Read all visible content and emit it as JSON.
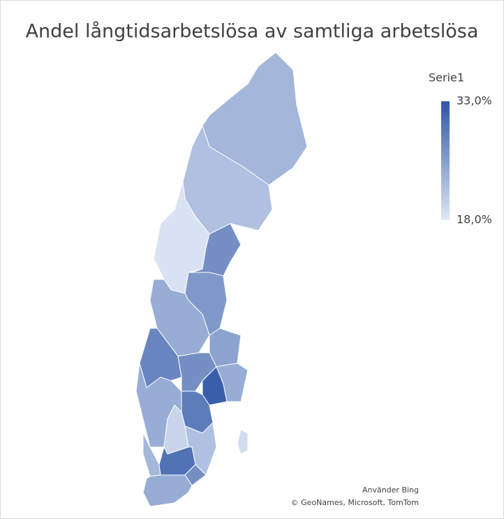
{
  "chart_data": {
    "type": "choropleth",
    "title": "Andel långtidsarbetslösa av samtliga arbetslösa",
    "legend_title": "Serie1",
    "values": [
      23,
      22,
      18.5,
      27,
      26,
      24,
      28,
      27,
      25,
      24,
      32,
      29,
      24,
      20,
      22,
      23,
      30,
      27,
      24,
      19
    ],
    "colorlim": [
      18,
      33
    ],
    "colorticks": [
      {
        "value": 18,
        "label": "18,0%"
      },
      {
        "value": 33,
        "label": "33,0%"
      }
    ],
    "colors": [
      "#dfe7f5",
      "#2e55a5"
    ],
    "attribution": [
      "Använder Bing",
      "© GeoNames, Microsoft, TomTom"
    ]
  }
}
